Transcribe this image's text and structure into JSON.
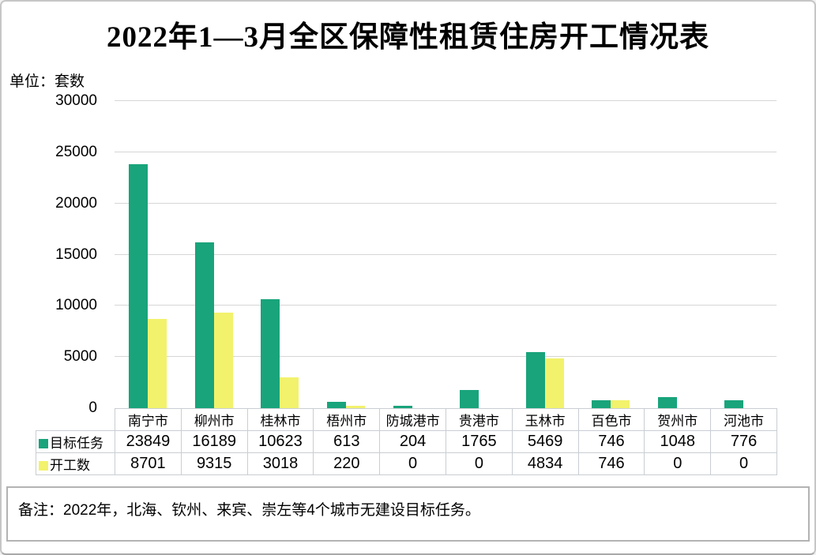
{
  "title": "2022年1—3月全区保障性租赁住房开工情况表",
  "unit_label": "单位：套数",
  "note": "备注：2022年，北海、钦州、来宾、崇左等4个城市无建设目标任务。",
  "colors": {
    "target_series": "#19A47B",
    "started_series": "#F2F26C",
    "gridline": "#D6D6D6",
    "table_border": "#C9CED3"
  },
  "chart_data": {
    "type": "bar",
    "title": "2022年1—3月全区保障性租赁住房开工情况表",
    "xlabel": "",
    "ylabel": "单位：套数",
    "categories": [
      "南宁市",
      "柳州市",
      "桂林市",
      "梧州市",
      "防城港市",
      "贵港市",
      "玉林市",
      "百色市",
      "贺州市",
      "河池市"
    ],
    "series": [
      {
        "name": "目标任务",
        "color": "#19A47B",
        "values": [
          23849,
          16189,
          10623,
          613,
          204,
          1765,
          5469,
          746,
          1048,
          776
        ]
      },
      {
        "name": "开工数",
        "color": "#F2F26C",
        "values": [
          8701,
          9315,
          3018,
          220,
          0,
          0,
          4834,
          746,
          0,
          0
        ]
      }
    ],
    "ylim": [
      0,
      30000
    ],
    "yticks": [
      0,
      5000,
      10000,
      15000,
      20000,
      25000,
      30000
    ],
    "grid": true,
    "legend_position": "table-left"
  }
}
